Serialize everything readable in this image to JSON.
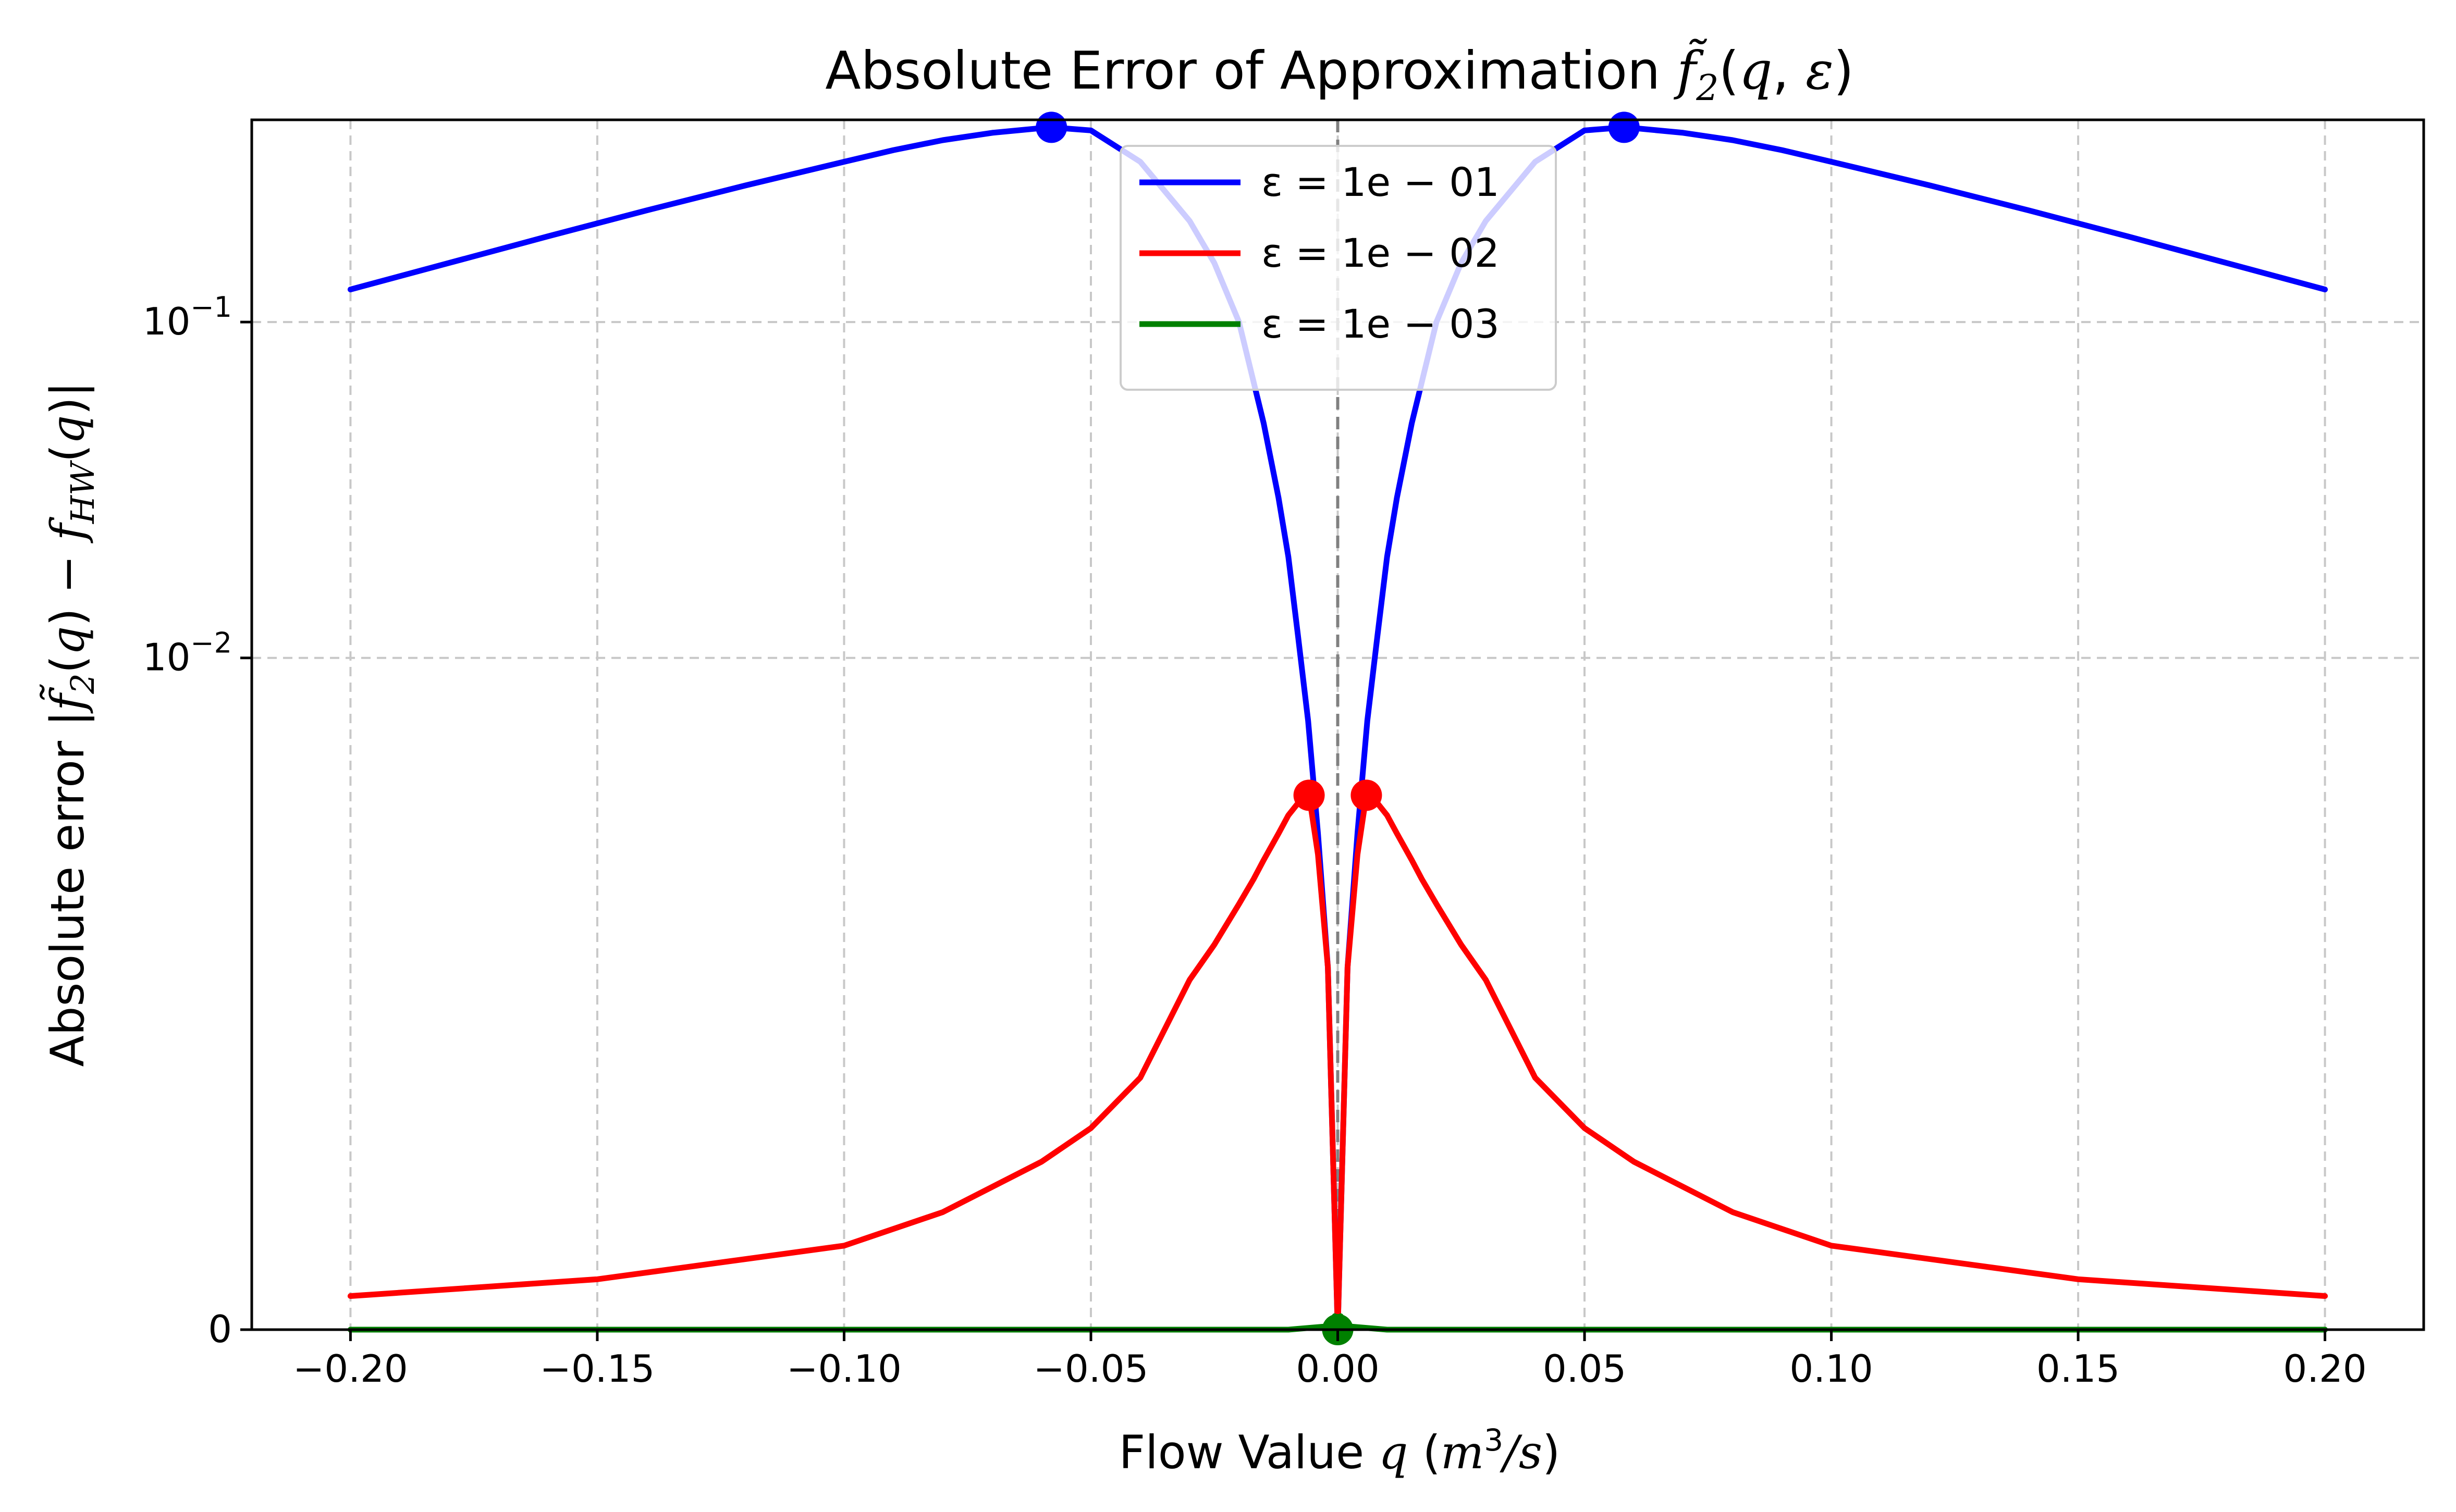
{
  "chart_data": {
    "type": "line",
    "title": "Absolute Error of Approximation f̃₂(q, ε)",
    "xlabel": "Flow Value q (m³/s)",
    "ylabel": "Absolute error |f̃₂(q) − f_HW(q)|",
    "xlim": [
      -0.22,
      0.22
    ],
    "yscale": "symlog",
    "ylim": [
      0,
      0.4
    ],
    "x_ticks": [
      -0.2,
      -0.15,
      -0.1,
      -0.05,
      0.0,
      0.05,
      0.1,
      0.15,
      0.2
    ],
    "x_tick_labels": [
      "−0.20",
      "−0.15",
      "−0.10",
      "−0.05",
      "0.00",
      "0.05",
      "0.10",
      "0.15",
      "0.20"
    ],
    "y_ticks": [
      0,
      0.01,
      0.1
    ],
    "y_tick_labels": [
      "0",
      "10⁻²",
      "10⁻¹"
    ],
    "grid": true,
    "vertical_reference_line": 0.0,
    "legend_position": "upper center",
    "series": [
      {
        "name": "ε = 1e − 01",
        "color": "#0000ff",
        "x": [
          -0.2,
          -0.18,
          -0.16,
          -0.14,
          -0.12,
          -0.1,
          -0.09,
          -0.08,
          -0.07,
          -0.06,
          -0.058,
          -0.05,
          -0.04,
          -0.03,
          -0.025,
          -0.02,
          -0.015,
          -0.012,
          -0.01,
          -0.008,
          -0.006,
          -0.004,
          -0.002,
          0.0,
          0.002,
          0.004,
          0.006,
          0.008,
          0.01,
          0.012,
          0.015,
          0.02,
          0.025,
          0.03,
          0.04,
          0.05,
          0.058,
          0.06,
          0.07,
          0.08,
          0.09,
          0.1,
          0.12,
          0.14,
          0.16,
          0.18,
          0.2
        ],
        "y": [
          0.125,
          0.15,
          0.18,
          0.215,
          0.255,
          0.3,
          0.325,
          0.348,
          0.366,
          0.378,
          0.38,
          0.372,
          0.3,
          0.2,
          0.15,
          0.1,
          0.05,
          0.03,
          0.02,
          0.0115,
          0.0065,
          0.003,
          0.0012,
          0.0,
          0.0012,
          0.003,
          0.0065,
          0.0115,
          0.02,
          0.03,
          0.05,
          0.1,
          0.15,
          0.2,
          0.3,
          0.372,
          0.38,
          0.378,
          0.366,
          0.348,
          0.325,
          0.3,
          0.255,
          0.215,
          0.18,
          0.15,
          0.125
        ],
        "markers": [
          {
            "x": -0.058,
            "y": 0.38
          },
          {
            "x": 0.058,
            "y": 0.38
          }
        ]
      },
      {
        "name": "ε = 1e − 02",
        "color": "#ff0000",
        "x": [
          -0.2,
          -0.15,
          -0.1,
          -0.08,
          -0.06,
          -0.05,
          -0.04,
          -0.03,
          -0.025,
          -0.02,
          -0.017,
          -0.015,
          -0.012,
          -0.01,
          -0.008,
          -0.0058,
          -0.004,
          -0.002,
          0.0,
          0.002,
          0.004,
          0.0058,
          0.008,
          0.01,
          0.012,
          0.015,
          0.017,
          0.02,
          0.025,
          0.03,
          0.04,
          0.05,
          0.06,
          0.08,
          0.1,
          0.15,
          0.2
        ],
        "y": [
          0.0001,
          0.00015,
          0.00025,
          0.00035,
          0.0005,
          0.0006,
          0.00075,
          0.0011,
          0.0014,
          0.00185,
          0.0022,
          0.0025,
          0.003,
          0.0034,
          0.0037,
          0.0039,
          0.0026,
          0.0012,
          0.0,
          0.0012,
          0.0026,
          0.0039,
          0.0037,
          0.0034,
          0.003,
          0.0025,
          0.0022,
          0.00185,
          0.0014,
          0.0011,
          0.00075,
          0.0006,
          0.0005,
          0.00035,
          0.00025,
          0.00015,
          0.0001
        ],
        "markers": [
          {
            "x": -0.0058,
            "y": 0.0039
          },
          {
            "x": 0.0058,
            "y": 0.0039
          }
        ]
      },
      {
        "name": "ε = 1e − 03",
        "color": "#008000",
        "x": [
          -0.2,
          -0.1,
          -0.05,
          -0.01,
          -0.002,
          -0.0006,
          0.0,
          0.0006,
          0.002,
          0.01,
          0.05,
          0.1,
          0.2
        ],
        "y": [
          0.0,
          0.0,
          0.0,
          0.0,
          1e-05,
          4e-05,
          0.0,
          4e-05,
          1e-05,
          0.0,
          0.0,
          0.0,
          0.0
        ],
        "markers": [
          {
            "x": 0.0,
            "y": 0.0
          }
        ]
      }
    ]
  }
}
